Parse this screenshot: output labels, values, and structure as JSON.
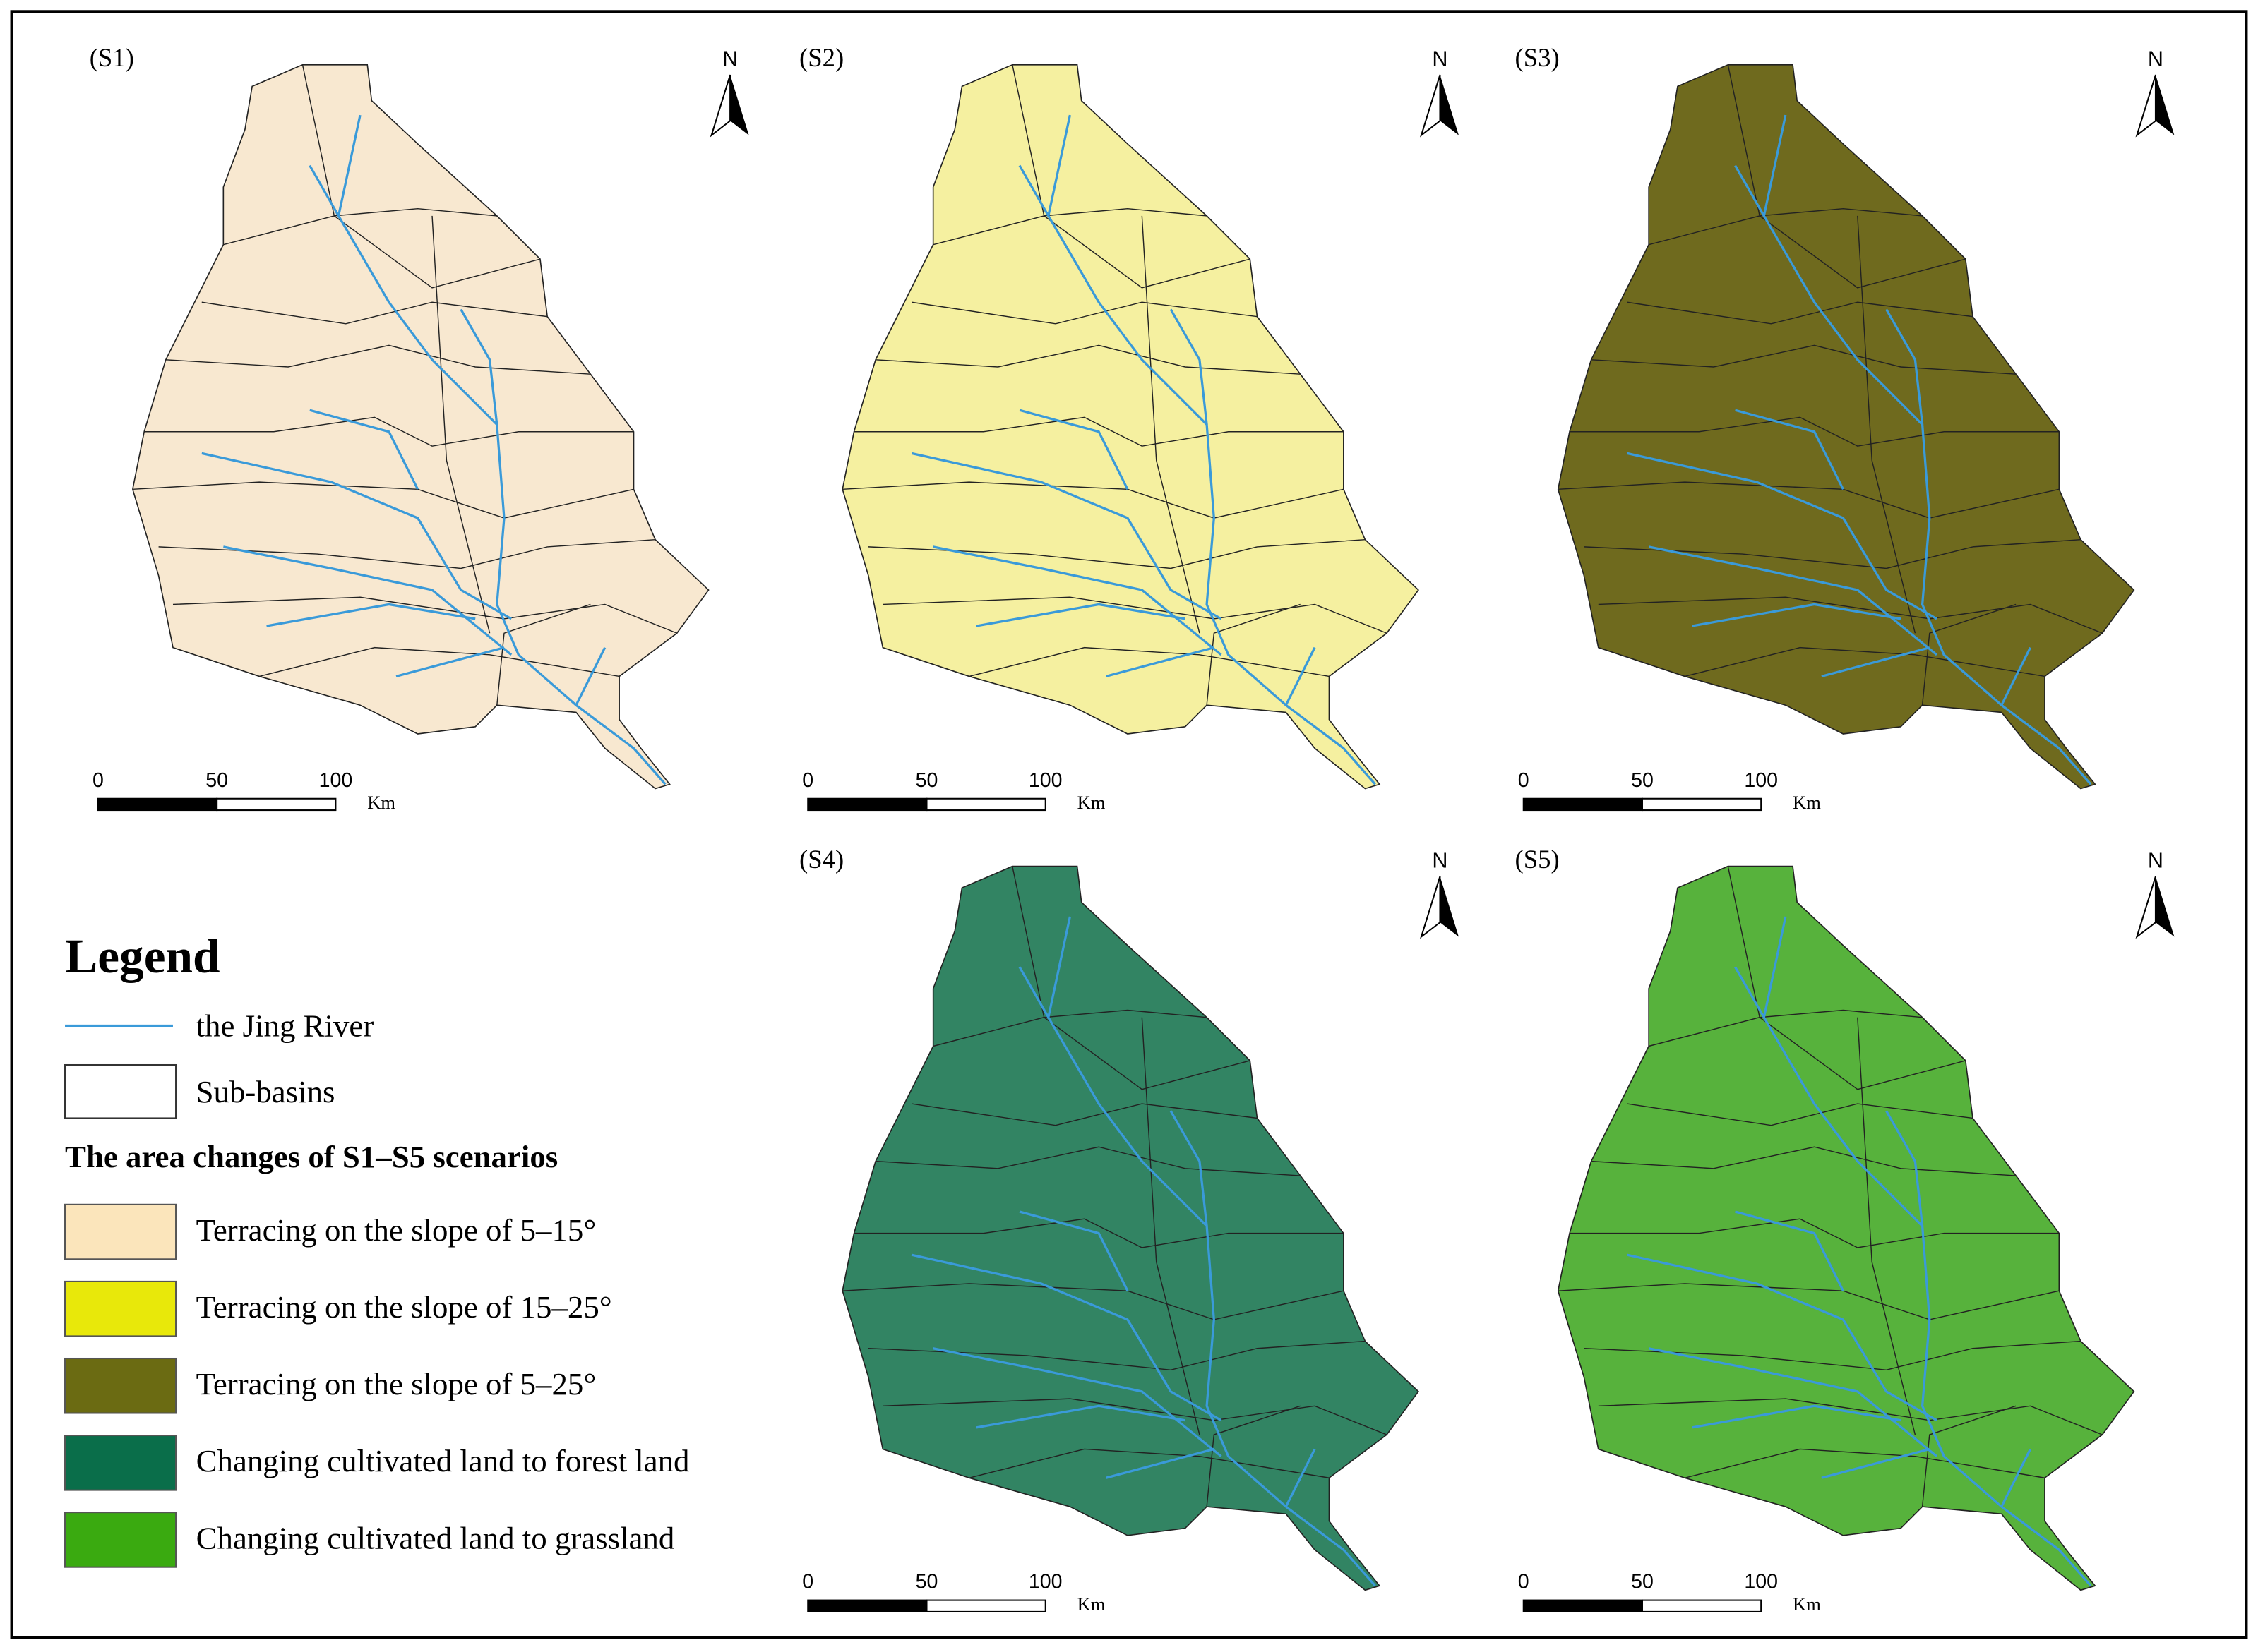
{
  "panels": [
    {
      "label": "(S1)",
      "north": "N",
      "color": "#f8e8d0",
      "scale": {
        "ticks": [
          0,
          50,
          100
        ],
        "unit": "Km"
      }
    },
    {
      "label": "(S2)",
      "north": "N",
      "color": "#f5f0a0",
      "scale": {
        "ticks": [
          0,
          50,
          100
        ],
        "unit": "Km"
      }
    },
    {
      "label": "(S3)",
      "north": "N",
      "color": "#6f6a1e",
      "scale": {
        "ticks": [
          0,
          50,
          100
        ],
        "unit": "Km"
      }
    },
    {
      "label": "(S4)",
      "north": "N",
      "color": "#0e6e48",
      "scale": {
        "ticks": [
          0,
          50,
          100
        ],
        "unit": "Km"
      }
    },
    {
      "label": "(S5)",
      "north": "N",
      "color": "#3aa51a",
      "scale": {
        "ticks": [
          0,
          50,
          100
        ],
        "unit": "Km"
      }
    }
  ],
  "legend": {
    "title": "Legend",
    "items": [
      {
        "label": "the Jing River",
        "color": "#3a9ad9"
      },
      {
        "label": "Sub-basins",
        "color": "#ffffff"
      }
    ],
    "section": "The area changes of S1–S5 scenarios",
    "scenarios": [
      {
        "label": "Terracing on the slope of 5–15°",
        "color": "#fbe5bb"
      },
      {
        "label": "Terracing on the slope of 15–25°",
        "color": "#e8e80a"
      },
      {
        "label": "Terracing on the slope of 5–25°",
        "color": "#6b6b12"
      },
      {
        "label": "Changing cultivated land to forest land",
        "color": "#0a6e4a"
      },
      {
        "label": "Changing cultivated land to grassland",
        "color": "#3aaa10"
      }
    ]
  }
}
